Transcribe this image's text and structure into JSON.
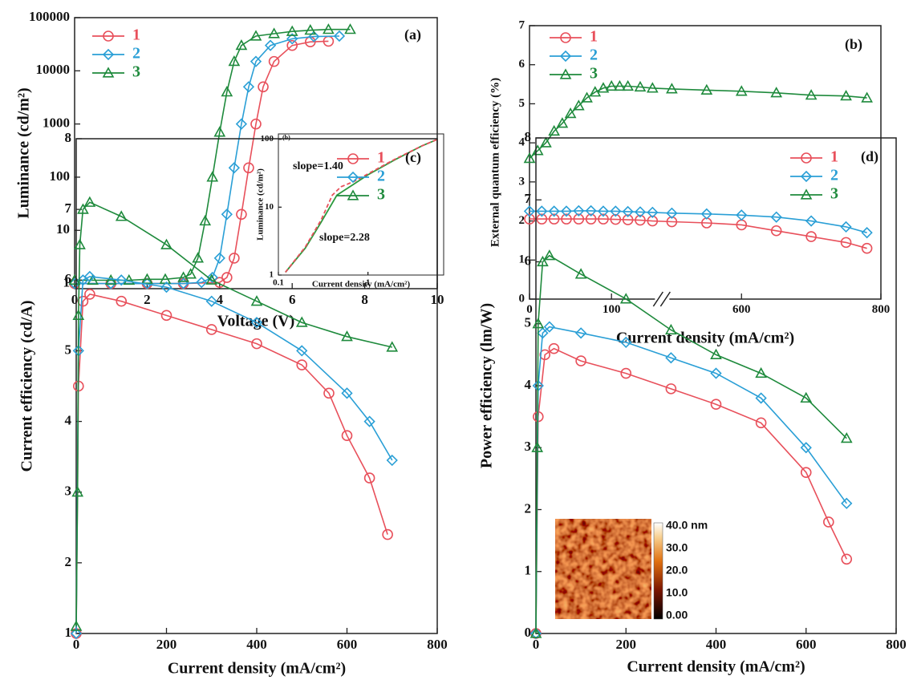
{
  "chart_data": [
    {
      "type": "line",
      "panel_label": "(a)",
      "xlabel": "Voltage (V)",
      "ylabel": "Luminance (cd/m²)",
      "xlim": [
        0,
        10
      ],
      "xticks": [
        0,
        2,
        4,
        6,
        8,
        10
      ],
      "ylim": [
        0.8,
        100000
      ],
      "ylog": true,
      "yticks": [
        1,
        10,
        100,
        1000,
        10000,
        100000
      ],
      "legend": "upper left",
      "series": [
        {
          "name": "1",
          "color": "#e8505b",
          "marker": "circle",
          "x": [
            0,
            1,
            2,
            3,
            4,
            4.2,
            4.4,
            4.6,
            4.8,
            5,
            5.2,
            5.5,
            6,
            6.5,
            7
          ],
          "values": [
            1,
            1,
            1,
            1,
            1.05,
            1.3,
            3,
            20,
            150,
            1000,
            5000,
            15000,
            30000,
            35000,
            36000
          ]
        },
        {
          "name": "2",
          "color": "#2a9fd6",
          "marker": "diamond",
          "x": [
            0,
            1,
            2,
            3,
            3.5,
            3.8,
            4,
            4.2,
            4.4,
            4.6,
            4.8,
            5,
            5.4,
            6,
            6.6,
            7.3
          ],
          "values": [
            1,
            1,
            1,
            1,
            1.05,
            1.3,
            3,
            20,
            150,
            1000,
            5000,
            15000,
            30000,
            40000,
            44000,
            45000
          ]
        },
        {
          "name": "3",
          "color": "#1e8a3c",
          "marker": "triangle",
          "x": [
            0,
            0.5,
            1,
            1.5,
            2,
            2.5,
            3,
            3.2,
            3.4,
            3.6,
            3.8,
            4,
            4.2,
            4.4,
            4.6,
            5,
            5.5,
            6,
            6.5,
            7,
            7.6
          ],
          "values": [
            1.15,
            1.15,
            1.15,
            1.15,
            1.2,
            1.2,
            1.3,
            1.5,
            3,
            15,
            100,
            700,
            4000,
            15000,
            30000,
            45000,
            50000,
            55000,
            58000,
            60000,
            60000
          ]
        }
      ]
    },
    {
      "type": "line",
      "panel_label": "(b)",
      "xlabel": "Current density (mA/cm²)",
      "ylabel": "Luminance (cd/m²)",
      "xlim": [
        0.1,
        7
      ],
      "xlog": true,
      "xticks": [
        0.1,
        1
      ],
      "ylim": [
        1,
        120
      ],
      "ylog": true,
      "yticks": [
        1,
        10,
        100
      ],
      "annotations": [
        "slope=1.40",
        "slope=2.28"
      ],
      "series": [
        {
          "color": "#2a9a3c",
          "x": [
            0.12,
            0.2,
            0.3,
            0.45,
            0.7,
            1,
            2,
            4,
            6
          ],
          "values": [
            1.1,
            2.5,
            6,
            15,
            22,
            30,
            50,
            80,
            100
          ]
        },
        {
          "color": "#e8505b",
          "dash": true,
          "x": [
            0.12,
            0.2,
            0.3,
            0.4,
            0.5,
            0.7,
            1,
            2,
            4,
            6
          ],
          "values": [
            1.1,
            2.6,
            6.5,
            15,
            20,
            24,
            31,
            51,
            80,
            100
          ]
        }
      ]
    },
    {
      "type": "line",
      "panel_label": "(b)",
      "xlabel": "Current density (mA/cm²)",
      "ylabel": "External quantum efficiency (%)",
      "xlim": [
        0,
        800
      ],
      "xbreak": [
        150,
        500
      ],
      "xticks": [
        0,
        100,
        600,
        800
      ],
      "ylim": [
        0,
        7
      ],
      "yticks": [
        0,
        1,
        2,
        3,
        4,
        5,
        6,
        7
      ],
      "legend": "upper left",
      "series": [
        {
          "name": "1",
          "color": "#e8505b",
          "marker": "circle",
          "x": [
            0,
            15,
            30,
            45,
            60,
            75,
            90,
            105,
            120,
            135,
            150,
            500,
            550,
            600,
            650,
            700,
            750,
            780
          ],
          "values": [
            2.05,
            2.05,
            2.05,
            2.05,
            2.05,
            2.05,
            2.05,
            2.04,
            2.03,
            2.02,
            2.0,
            1.98,
            1.95,
            1.9,
            1.75,
            1.6,
            1.45,
            1.3
          ]
        },
        {
          "name": "2",
          "color": "#2a9fd6",
          "marker": "diamond",
          "x": [
            0,
            15,
            30,
            45,
            60,
            75,
            90,
            105,
            120,
            135,
            150,
            500,
            550,
            600,
            650,
            700,
            750,
            780
          ],
          "values": [
            2.25,
            2.25,
            2.25,
            2.25,
            2.26,
            2.26,
            2.25,
            2.25,
            2.24,
            2.23,
            2.22,
            2.2,
            2.18,
            2.15,
            2.1,
            2.0,
            1.85,
            1.7
          ]
        },
        {
          "name": "3",
          "color": "#1e8a3c",
          "marker": "triangle",
          "x": [
            0,
            10,
            20,
            30,
            40,
            50,
            60,
            70,
            80,
            90,
            100,
            110,
            120,
            135,
            150,
            500,
            550,
            600,
            650,
            700,
            750,
            780
          ],
          "values": [
            3.6,
            3.8,
            4.0,
            4.3,
            4.5,
            4.75,
            4.95,
            5.15,
            5.3,
            5.4,
            5.45,
            5.45,
            5.45,
            5.43,
            5.4,
            5.38,
            5.35,
            5.32,
            5.28,
            5.22,
            5.2,
            5.15
          ]
        }
      ]
    },
    {
      "type": "line",
      "panel_label": "(c)",
      "xlabel": "Current density (mA/cm²)",
      "ylabel": "Current efficiency (cd/A)",
      "xlim": [
        0,
        800
      ],
      "xticks": [
        0,
        200,
        400,
        600,
        800
      ],
      "ylim": [
        1,
        8
      ],
      "yticks": [
        1,
        2,
        3,
        4,
        5,
        6,
        7,
        8
      ],
      "legend": "upper right",
      "series": [
        {
          "name": "1",
          "color": "#e8505b",
          "marker": "circle",
          "x": [
            0,
            5,
            15,
            30,
            100,
            200,
            300,
            400,
            500,
            560,
            600,
            650,
            690
          ],
          "values": [
            1,
            4.5,
            5.7,
            5.8,
            5.7,
            5.5,
            5.3,
            5.1,
            4.8,
            4.4,
            3.8,
            3.2,
            2.4
          ]
        },
        {
          "name": "2",
          "color": "#2a9fd6",
          "marker": "diamond",
          "x": [
            0,
            5,
            15,
            30,
            100,
            200,
            300,
            400,
            500,
            600,
            650,
            700
          ],
          "values": [
            1,
            5,
            6,
            6.05,
            6.0,
            5.9,
            5.7,
            5.4,
            5.0,
            4.4,
            4.0,
            3.45
          ]
        },
        {
          "name": "3",
          "color": "#1e8a3c",
          "marker": "triangle",
          "x": [
            0,
            3,
            5,
            8,
            15,
            30,
            100,
            200,
            300,
            400,
            500,
            600,
            700
          ],
          "values": [
            1.1,
            3,
            5.5,
            6.5,
            7,
            7.1,
            6.9,
            6.5,
            6.0,
            5.7,
            5.4,
            5.2,
            5.05
          ]
        }
      ]
    },
    {
      "type": "line",
      "panel_label": "(d)",
      "xlabel": "Current density (mA/cm²)",
      "ylabel": "Power efficiency (lm/W)",
      "xlim": [
        0,
        800
      ],
      "xticks": [
        0,
        200,
        400,
        600,
        800
      ],
      "ylim": [
        0,
        8
      ],
      "yticks": [
        0,
        1,
        2,
        3,
        4,
        5,
        6,
        7,
        8
      ],
      "legend": "upper right",
      "image_colorbar": [
        "40.0 nm",
        "30.0",
        "20.0",
        "10.0",
        "0.00"
      ],
      "series": [
        {
          "name": "1",
          "color": "#e8505b",
          "marker": "circle",
          "x": [
            0,
            5,
            20,
            40,
            100,
            200,
            300,
            400,
            500,
            600,
            650,
            690
          ],
          "values": [
            0,
            3.5,
            4.5,
            4.6,
            4.4,
            4.2,
            3.95,
            3.7,
            3.4,
            2.6,
            1.8,
            1.2
          ]
        },
        {
          "name": "2",
          "color": "#2a9fd6",
          "marker": "diamond",
          "x": [
            0,
            5,
            15,
            30,
            100,
            200,
            300,
            400,
            500,
            600,
            690
          ],
          "values": [
            0,
            4,
            4.85,
            4.95,
            4.85,
            4.7,
            4.45,
            4.2,
            3.8,
            3.0,
            2.1
          ]
        },
        {
          "name": "3",
          "color": "#1e8a3c",
          "marker": "triangle",
          "x": [
            0,
            3,
            5,
            15,
            30,
            100,
            200,
            300,
            400,
            500,
            600,
            690
          ],
          "values": [
            0,
            3,
            5,
            6,
            6.1,
            5.8,
            5.4,
            4.9,
            4.5,
            4.2,
            3.8,
            3.15
          ]
        }
      ]
    }
  ]
}
